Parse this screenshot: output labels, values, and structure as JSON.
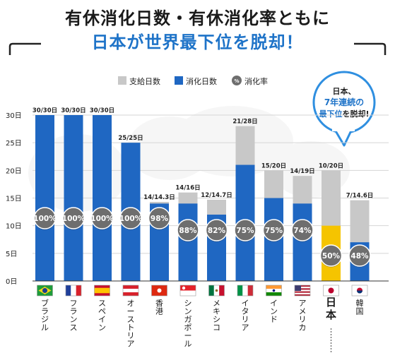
{
  "header": {
    "title_line1": "有休消化日数・有休消化率ともに",
    "title_line2": "日本が世界最下位を脱却！"
  },
  "legend": {
    "granted": "支給日数",
    "used": "消化日数",
    "rate": "消化率",
    "rate_icon_text": "%"
  },
  "callout": {
    "line1": "日本、",
    "line2": "7年連続の",
    "line3a": "最下位",
    "line3b": "を脱却!"
  },
  "colors": {
    "granted": "#c8c8c8",
    "used": "#1f67c2",
    "japan_used": "#f5c400",
    "circle": "#6e6e6e",
    "accent": "#1e73c8"
  },
  "chart_data": {
    "type": "bar",
    "ylim": [
      0,
      30
    ],
    "yticks": [
      0,
      5,
      10,
      15,
      20,
      25,
      30
    ],
    "ytick_labels": [
      "0日",
      "5日",
      "10日",
      "15日",
      "20日",
      "25日",
      "30日"
    ],
    "categories": [
      "ブラジル",
      "フランス",
      "スペイン",
      "オーストリア",
      "香港",
      "シンガポール",
      "メキシコ",
      "イタリア",
      "インド",
      "アメリカ",
      "日本",
      "韓国"
    ],
    "series": [
      {
        "name": "支給日数",
        "values": [
          30,
          30,
          30,
          25,
          14.3,
          16,
          14.7,
          28,
          20,
          19,
          20,
          14.6
        ]
      },
      {
        "name": "消化日数",
        "values": [
          30,
          30,
          30,
          25,
          14,
          14,
          12,
          21,
          15,
          14,
          10,
          7
        ]
      }
    ],
    "bar_labels": [
      "30/30日",
      "30/30日",
      "30/30日",
      "25/25日",
      "14/14.3日",
      "14/16日",
      "12/14.7日",
      "21/28日",
      "15/20日",
      "14/19日",
      "10/20日",
      "7/14.6日"
    ],
    "rates": [
      "100%",
      "100%",
      "100%",
      "100%",
      "98%",
      "88%",
      "82%",
      "75%",
      "75%",
      "74%",
      "50%",
      "48%"
    ]
  }
}
